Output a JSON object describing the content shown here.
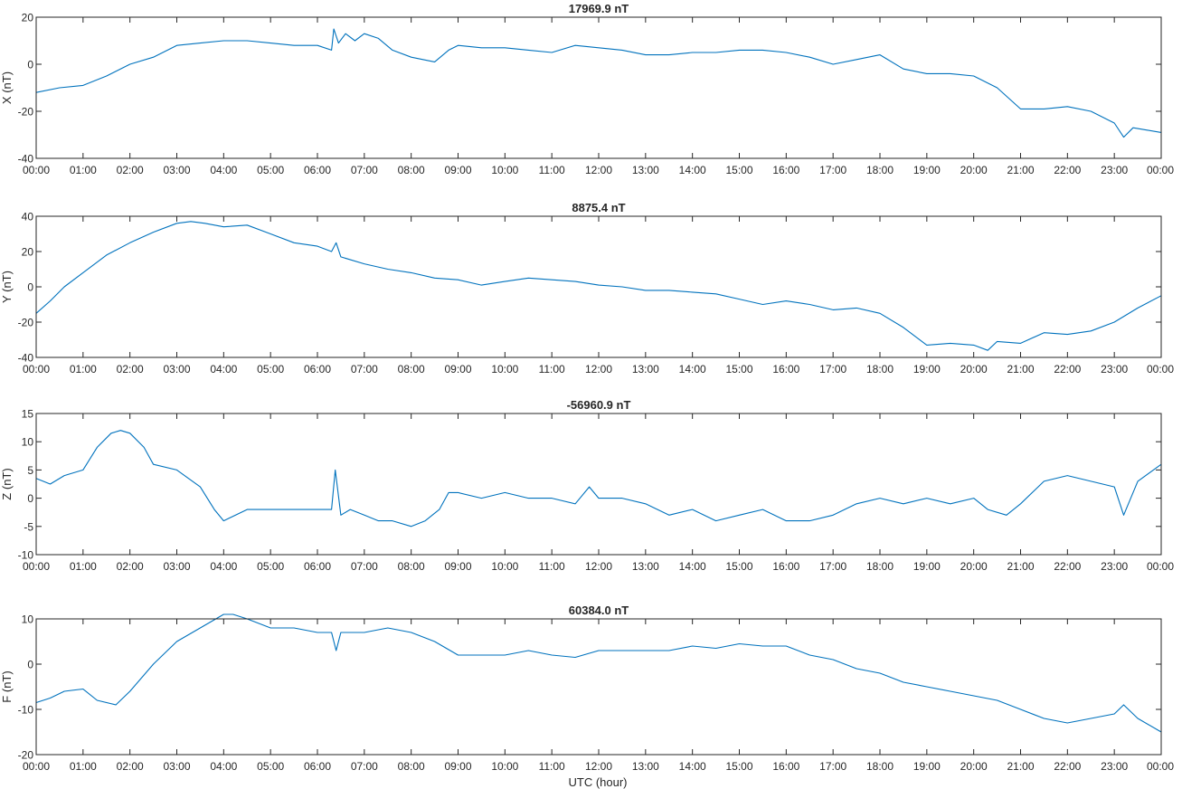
{
  "figure": {
    "xlabel": "UTC (hour)",
    "x_ticks": [
      "00:00",
      "01:00",
      "02:00",
      "03:00",
      "04:00",
      "05:00",
      "06:00",
      "07:00",
      "08:00",
      "09:00",
      "10:00",
      "11:00",
      "12:00",
      "13:00",
      "14:00",
      "15:00",
      "16:00",
      "17:00",
      "18:00",
      "19:00",
      "20:00",
      "21:00",
      "22:00",
      "23:00",
      "00:00"
    ],
    "line_color": "#0072bd"
  },
  "chart_data": [
    {
      "type": "line",
      "title": "17969.9 nT",
      "ylabel": "X (nT)",
      "xlim": [
        0,
        24
      ],
      "ylim": [
        -40,
        20
      ],
      "y_ticks": [
        -40,
        -20,
        0,
        20
      ],
      "grid": false,
      "x": [
        0,
        0.5,
        1,
        1.5,
        2,
        2.5,
        3,
        3.5,
        4,
        4.5,
        5,
        5.5,
        6,
        6.3,
        6.35,
        6.45,
        6.6,
        6.8,
        7,
        7.3,
        7.6,
        8,
        8.5,
        8.8,
        9,
        9.5,
        10,
        10.5,
        11,
        11.5,
        12,
        12.5,
        13,
        13.5,
        14,
        14.5,
        15,
        15.5,
        16,
        16.5,
        17,
        17.5,
        18,
        18.5,
        19,
        19.5,
        20,
        20.5,
        21,
        21.5,
        22,
        22.5,
        23,
        23.2,
        23.4,
        23.7,
        24
      ],
      "y": [
        -12,
        -10,
        -9,
        -5,
        0,
        3,
        8,
        9,
        10,
        10,
        9,
        8,
        8,
        6,
        15,
        9,
        13,
        10,
        13,
        11,
        6,
        3,
        1,
        6,
        8,
        7,
        7,
        6,
        5,
        8,
        7,
        6,
        4,
        4,
        5,
        5,
        6,
        6,
        5,
        3,
        0,
        2,
        4,
        -2,
        -4,
        -4,
        -5,
        -10,
        -19,
        -19,
        -18,
        -20,
        -25,
        -31,
        -27,
        -28,
        -29
      ]
    },
    {
      "type": "line",
      "title": "8875.4 nT",
      "ylabel": "Y (nT)",
      "xlim": [
        0,
        24
      ],
      "ylim": [
        -40,
        40
      ],
      "y_ticks": [
        -40,
        -20,
        0,
        20,
        40
      ],
      "grid": false,
      "x": [
        0,
        0.3,
        0.6,
        1,
        1.5,
        2,
        2.5,
        3,
        3.3,
        3.6,
        4,
        4.5,
        5,
        5.5,
        6,
        6.3,
        6.4,
        6.5,
        7,
        7.5,
        8,
        8.5,
        9,
        9.5,
        10,
        10.5,
        11,
        11.5,
        12,
        12.5,
        13,
        13.5,
        14,
        14.5,
        15,
        15.5,
        16,
        16.5,
        17,
        17.5,
        18,
        18.5,
        19,
        19.5,
        20,
        20.3,
        20.5,
        21,
        21.5,
        22,
        22.5,
        23,
        23.5,
        24
      ],
      "y": [
        -15,
        -8,
        0,
        8,
        18,
        25,
        31,
        36,
        37,
        36,
        34,
        35,
        30,
        25,
        23,
        20,
        25,
        17,
        13,
        10,
        8,
        5,
        4,
        1,
        3,
        5,
        4,
        3,
        1,
        0,
        -2,
        -2,
        -3,
        -4,
        -7,
        -10,
        -8,
        -10,
        -13,
        -12,
        -15,
        -23,
        -33,
        -32,
        -33,
        -36,
        -31,
        -32,
        -26,
        -27,
        -25,
        -20,
        -12,
        -5
      ]
    },
    {
      "type": "line",
      "title": "-56960.9 nT",
      "ylabel": "Z (nT)",
      "xlim": [
        0,
        24
      ],
      "ylim": [
        -10,
        15
      ],
      "y_ticks": [
        -10,
        -5,
        0,
        5,
        10,
        15
      ],
      "grid": false,
      "x": [
        0,
        0.3,
        0.6,
        1,
        1.3,
        1.6,
        1.8,
        2,
        2.3,
        2.5,
        3,
        3.5,
        3.8,
        4,
        4.5,
        5,
        5.5,
        6,
        6.3,
        6.38,
        6.5,
        6.7,
        7,
        7.3,
        7.6,
        8,
        8.3,
        8.6,
        8.8,
        9,
        9.5,
        10,
        10.5,
        11,
        11.5,
        11.8,
        12,
        12.5,
        13,
        13.5,
        14,
        14.5,
        15,
        15.5,
        16,
        16.5,
        17,
        17.5,
        18,
        18.5,
        19,
        19.5,
        20,
        20.3,
        20.7,
        21,
        21.5,
        22,
        22.5,
        23,
        23.2,
        23.5,
        24
      ],
      "y": [
        3.5,
        2.5,
        4,
        5,
        9,
        11.5,
        12,
        11.5,
        9,
        6,
        5,
        2,
        -2,
        -4,
        -2,
        -2,
        -2,
        -2,
        -2,
        5,
        -3,
        -2,
        -3,
        -4,
        -4,
        -5,
        -4,
        -2,
        1,
        1,
        0,
        1,
        0,
        0,
        -1,
        2,
        0,
        0,
        -1,
        -3,
        -2,
        -4,
        -3,
        -2,
        -4,
        -4,
        -3,
        -1,
        0,
        -1,
        0,
        -1,
        0,
        -2,
        -3,
        -1,
        3,
        4,
        3,
        2,
        -3,
        3,
        6
      ]
    },
    {
      "type": "line",
      "title": "60384.0 nT",
      "ylabel": "F (nT)",
      "xlim": [
        0,
        24
      ],
      "ylim": [
        -20,
        10
      ],
      "y_ticks": [
        -20,
        -10,
        0,
        10
      ],
      "grid": false,
      "x": [
        0,
        0.3,
        0.6,
        1,
        1.3,
        1.7,
        2,
        2.5,
        3,
        3.5,
        4,
        4.2,
        4.5,
        5,
        5.5,
        6,
        6.3,
        6.4,
        6.5,
        7,
        7.5,
        8,
        8.5,
        9,
        9.5,
        10,
        10.5,
        11,
        11.5,
        12,
        12.5,
        13,
        13.5,
        14,
        14.5,
        15,
        15.5,
        16,
        16.5,
        17,
        17.5,
        18,
        18.5,
        19,
        19.5,
        20,
        20.5,
        21,
        21.5,
        22,
        22.5,
        23,
        23.2,
        23.5,
        24
      ],
      "y": [
        -8.5,
        -7.5,
        -6,
        -5.5,
        -8,
        -9,
        -6,
        0,
        5,
        8,
        11,
        11,
        10,
        8,
        8,
        7,
        7,
        3,
        7,
        7,
        8,
        7,
        5,
        2,
        2,
        2,
        3,
        2,
        1.5,
        3,
        3,
        3,
        3,
        4,
        3.5,
        4.5,
        4,
        4,
        2,
        1,
        -1,
        -2,
        -4,
        -5,
        -6,
        -7,
        -8,
        -10,
        -12,
        -13,
        -12,
        -11,
        -9,
        -12,
        -15
      ]
    }
  ]
}
